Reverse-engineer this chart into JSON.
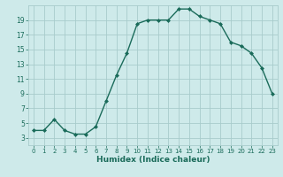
{
  "x": [
    0,
    1,
    2,
    3,
    4,
    5,
    6,
    7,
    8,
    9,
    10,
    11,
    12,
    13,
    14,
    15,
    16,
    17,
    18,
    19,
    20,
    21,
    22,
    23
  ],
  "y": [
    4.0,
    4.0,
    5.5,
    4.0,
    3.5,
    3.5,
    4.5,
    8.0,
    11.5,
    14.5,
    18.5,
    19.0,
    19.0,
    19.0,
    20.5,
    20.5,
    19.5,
    19.0,
    18.5,
    16.0,
    15.5,
    14.5,
    12.5,
    9.0
  ],
  "line_color": "#1a6b5a",
  "bg_color": "#ceeaea",
  "grid_color": "#a8cccc",
  "xlabel": "Humidex (Indice chaleur)",
  "xlim": [
    -0.5,
    23.5
  ],
  "ylim": [
    2,
    21
  ],
  "yticks": [
    3,
    5,
    7,
    9,
    11,
    13,
    15,
    17,
    19
  ],
  "xticks": [
    0,
    1,
    2,
    3,
    4,
    5,
    6,
    7,
    8,
    9,
    10,
    11,
    12,
    13,
    14,
    15,
    16,
    17,
    18,
    19,
    20,
    21,
    22,
    23
  ],
  "marker": "D",
  "marker_size": 2.0,
  "linewidth": 1.0
}
